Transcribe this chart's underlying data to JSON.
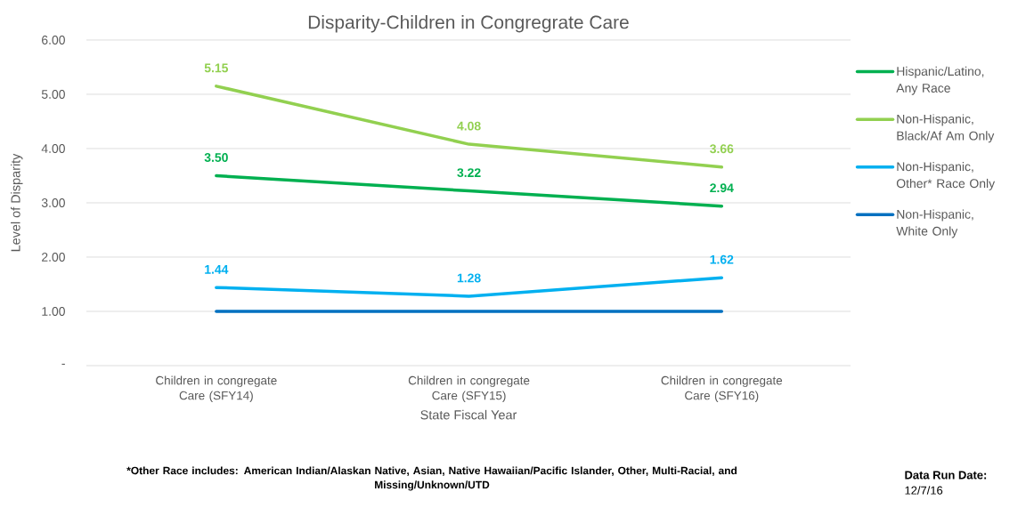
{
  "chart_data": {
    "type": "line",
    "title": "Disparity-Children in Congregrate Care",
    "xlabel": "State Fiscal Year",
    "ylabel": "Level of Disparity",
    "categories": [
      "Children in congregate Care (SFY14)",
      "Children in congregate Care (SFY15)",
      "Children in congregate Care (SFY16)"
    ],
    "series": [
      {
        "name": "Hispanic/Latino, Any Race",
        "color": "#00b050",
        "values": [
          3.5,
          3.22,
          2.94
        ],
        "value_labels": [
          "3.50",
          "3.22",
          "2.94"
        ]
      },
      {
        "name": "Non-Hispanic, Black/Af Am Only",
        "color": "#92d050",
        "values": [
          5.15,
          4.08,
          3.66
        ],
        "value_labels": [
          "5.15",
          "4.08",
          "3.66"
        ]
      },
      {
        "name": "Non-Hispanic, Other* Race Only",
        "color": "#00b0f0",
        "values": [
          1.44,
          1.28,
          1.62
        ],
        "value_labels": [
          "1.44",
          "1.28",
          "1.62"
        ]
      },
      {
        "name": "Non-Hispanic, White Only",
        "color": "#0070c0",
        "values": [
          1.0,
          1.0,
          1.0
        ]
      }
    ],
    "ylim": [
      0,
      6
    ],
    "yticks": [
      {
        "value": 0,
        "label": "-"
      },
      {
        "value": 1,
        "label": "1.00"
      },
      {
        "value": 2,
        "label": "2.00"
      },
      {
        "value": 3,
        "label": "3.00"
      },
      {
        "value": 4,
        "label": "4.00"
      },
      {
        "value": 5,
        "label": "5.00"
      },
      {
        "value": 6,
        "label": "6.00"
      }
    ],
    "grid": "y",
    "legend": "right",
    "marker": "none",
    "line_style": "solid",
    "annotations": [
      "*Other Race includes:  American Indian/Alaskan Native, Asian, Native Hawaiian/Pacific Islander, Other, Multi-Racial, and Missing/Unknown/UTD",
      "Data Run Date:",
      "12/7/16"
    ]
  }
}
